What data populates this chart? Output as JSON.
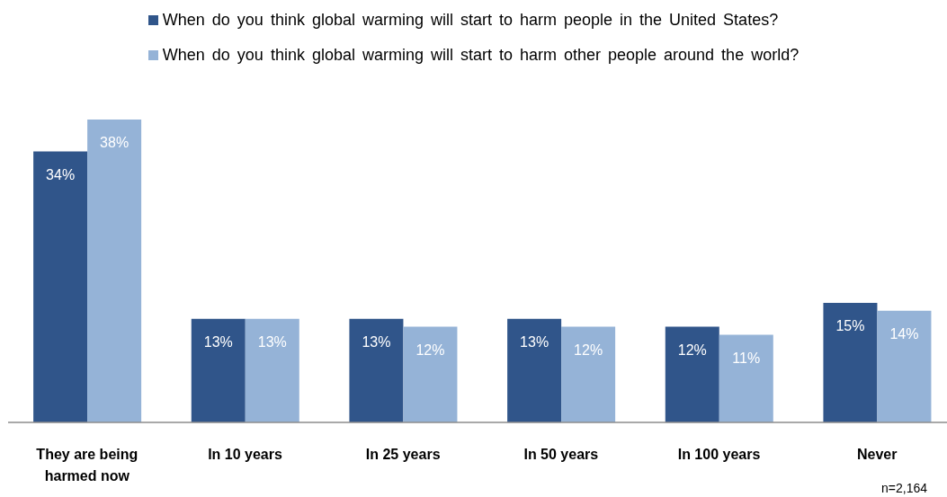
{
  "chart_data": {
    "type": "bar",
    "categories": [
      "They are being harmed now",
      "In 10 years",
      "In 25 years",
      "In 50 years",
      "In 100 years",
      "Never"
    ],
    "series": [
      {
        "name": "When do you think global warming will start to harm people in the United States?",
        "color": "#30558a",
        "values": [
          34,
          13,
          13,
          13,
          12,
          15
        ],
        "value_labels": [
          "34%",
          "13%",
          "13%",
          "13%",
          "12%",
          "15%"
        ]
      },
      {
        "name": "When do you think global warming will start to harm other people around the world?",
        "color": "#95b3d7",
        "values": [
          38,
          13,
          12,
          12,
          11,
          14
        ],
        "value_labels": [
          "38%",
          "13%",
          "12%",
          "12%",
          "11%",
          "14%"
        ]
      }
    ],
    "legend": "top",
    "annotations": [
      "n=2,164"
    ]
  }
}
